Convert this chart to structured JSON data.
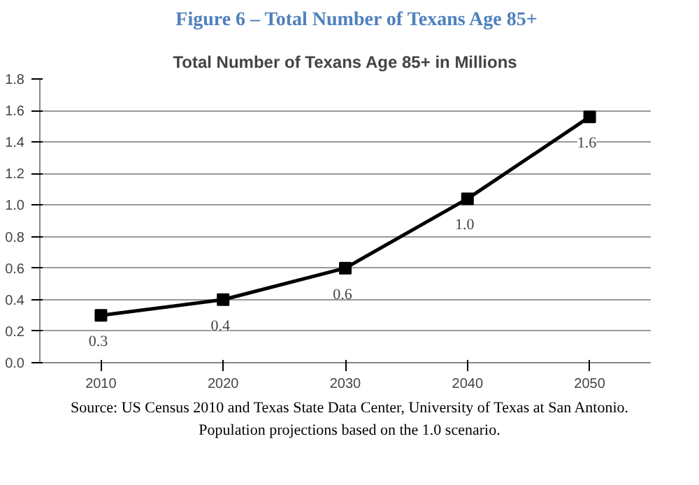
{
  "chart_data": {
    "type": "line",
    "title": "Figure 6 – Total Number of Texans Age 85+",
    "subtitle": "Total Number of Texans Age 85+ in Millions",
    "categories": [
      "2010",
      "2020",
      "2030",
      "2040",
      "2050"
    ],
    "values": [
      0.3,
      0.4,
      0.6,
      1.04,
      1.56
    ],
    "value_labels": [
      "0.3",
      "0.4",
      "0.6",
      "1.0",
      "1.6"
    ],
    "color": "#000000",
    "marker": "square",
    "line_style": "solid",
    "grid": "y",
    "ylim": [
      0,
      1.8
    ],
    "yticks": [
      {
        "value": 0,
        "label": "0.0"
      },
      0.2,
      0.4,
      0.6,
      0.8,
      {
        "value": 1,
        "label": "1.0"
      },
      1.2,
      1.4,
      1.6,
      1.8
    ],
    "annotations": [
      "Source: US Census 2010 and Texas State Data Center, University of Texas at San Antonio.  Population projections based on the 1.0 scenario."
    ]
  }
}
